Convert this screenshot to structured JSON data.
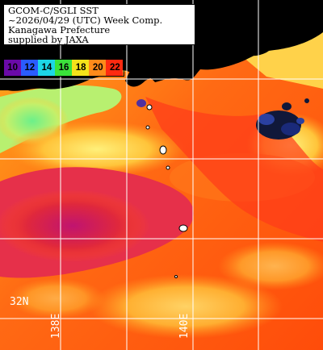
{
  "title": {
    "lines": [
      "GCOM-C/SGLI SST",
      "~2026/04/29 (UTC) Week Comp.",
      "Kanagawa Prefecture",
      "supplied by JAXA"
    ]
  },
  "colorbar": {
    "ticks": [
      "10",
      "12",
      "14",
      "16",
      "18",
      "20",
      "22"
    ],
    "colors": [
      "#6a0aa8",
      "#2a5cff",
      "#1cd6e6",
      "#3be23b",
      "#f4e21a",
      "#ff8a1a",
      "#ff2a10"
    ]
  },
  "grid": {
    "lat_label": "32N",
    "lon_labels": [
      "138E",
      "140E"
    ]
  }
}
